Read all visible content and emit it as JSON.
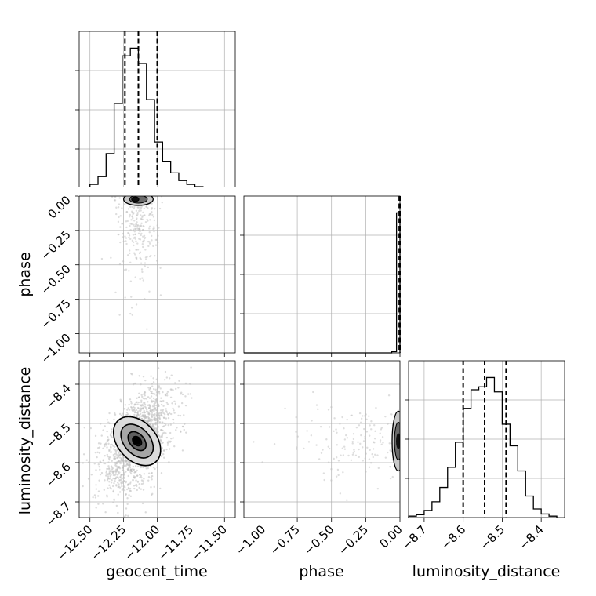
{
  "chart_data": {
    "type": "corner",
    "parameters": [
      "geocent_time",
      "phase",
      "luminosity_distance"
    ],
    "colors": {
      "line": "#000000",
      "grid": "#b0b0b0",
      "scatter": "#bdbdbd"
    },
    "ranges": {
      "geocent_time": [
        -12.58,
        -11.42
      ],
      "phase": [
        -1.14,
        0.0
      ],
      "luminosity_distance": [
        -8.74,
        -8.34
      ]
    },
    "ticks": {
      "geocent_time": [
        -12.5,
        -12.25,
        -12.0,
        -11.75,
        -11.5
      ],
      "phase": [
        -1.0,
        -0.75,
        -0.5,
        -0.25,
        0.0
      ],
      "luminosity_distance": [
        -8.7,
        -8.6,
        -8.5,
        -8.4
      ]
    },
    "tick_labels": {
      "geocent_time": [
        "−12.50",
        "−12.25",
        "−12.00",
        "−11.75",
        "−11.50"
      ],
      "phase": [
        "−1.00",
        "−0.75",
        "−0.50",
        "−0.25",
        "0.00"
      ],
      "luminosity_distance": [
        "−8.7",
        "−8.6",
        "−8.5",
        "−8.4"
      ]
    },
    "quantiles": {
      "geocent_time": [
        -12.24,
        -12.14,
        -12.0
      ],
      "phase": [
        -0.005,
        -0.002,
        0.0
      ],
      "luminosity_distance": [
        -8.6,
        -8.545,
        -8.49
      ]
    },
    "histograms": {
      "geocent_time": {
        "edges": [
          -12.56,
          -12.5,
          -12.44,
          -12.38,
          -12.32,
          -12.26,
          -12.2,
          -12.14,
          -12.08,
          -12.02,
          -11.96,
          -11.9,
          -11.84,
          -11.78,
          -11.72,
          -11.66,
          -11.6,
          -11.54,
          -11.48
        ],
        "counts": [
          1,
          5,
          15,
          45,
          110,
          172,
          182,
          162,
          115,
          60,
          35,
          20,
          10,
          5,
          2,
          1,
          0.5,
          0.3
        ]
      },
      "phase": {
        "edges": [
          -1.14,
          -1.08,
          -1.02,
          -0.96,
          -0.9,
          -0.84,
          -0.78,
          -0.72,
          -0.66,
          -0.6,
          -0.54,
          -0.48,
          -0.42,
          -0.36,
          -0.3,
          -0.24,
          -0.18,
          -0.12,
          -0.06,
          -0.025,
          0.0
        ],
        "counts": [
          0,
          0,
          0,
          0,
          0,
          0,
          0,
          0,
          0,
          0,
          0,
          0,
          0,
          0,
          0,
          0,
          0,
          0,
          2,
          240
        ]
      },
      "luminosity_distance": {
        "edges": [
          -8.76,
          -8.74,
          -8.72,
          -8.7,
          -8.68,
          -8.66,
          -8.64,
          -8.62,
          -8.6,
          -8.58,
          -8.56,
          -8.54,
          -8.52,
          -8.5,
          -8.48,
          -8.46,
          -8.44,
          -8.42,
          -8.4,
          -8.38,
          -8.36
        ],
        "counts": [
          1,
          2,
          4,
          10,
          22,
          42,
          70,
          105,
          152,
          178,
          182,
          195,
          175,
          130,
          100,
          65,
          30,
          12,
          5,
          2
        ]
      }
    },
    "contours_2d": {
      "geocent_time_vs_luminosity_distance": {
        "center": [
          -12.15,
          -8.545
        ],
        "levels": [
          {
            "rx": 0.045,
            "ry": 0.022,
            "fill": "#141414"
          },
          {
            "rx": 0.085,
            "ry": 0.045,
            "fill": "#606060"
          },
          {
            "rx": 0.155,
            "ry": 0.08,
            "fill": "#a6a6a6"
          },
          {
            "rx": 0.23,
            "ry": 0.115,
            "fill": "#dcdcdc"
          }
        ],
        "tilt_deg": 42,
        "scatter_spread": [
          0.16,
          0.085
        ],
        "scatter_count": 1600
      },
      "geocent_time_vs_phase": {
        "center": [
          -12.14,
          -0.005
        ],
        "rx": 0.11,
        "ry": 0.03,
        "scatter_count": 280
      },
      "phase_vs_luminosity_distance": {
        "center": [
          -0.005,
          -8.545
        ],
        "rx": 0.03,
        "ry": 0.07,
        "scatter_count": 160
      }
    }
  }
}
